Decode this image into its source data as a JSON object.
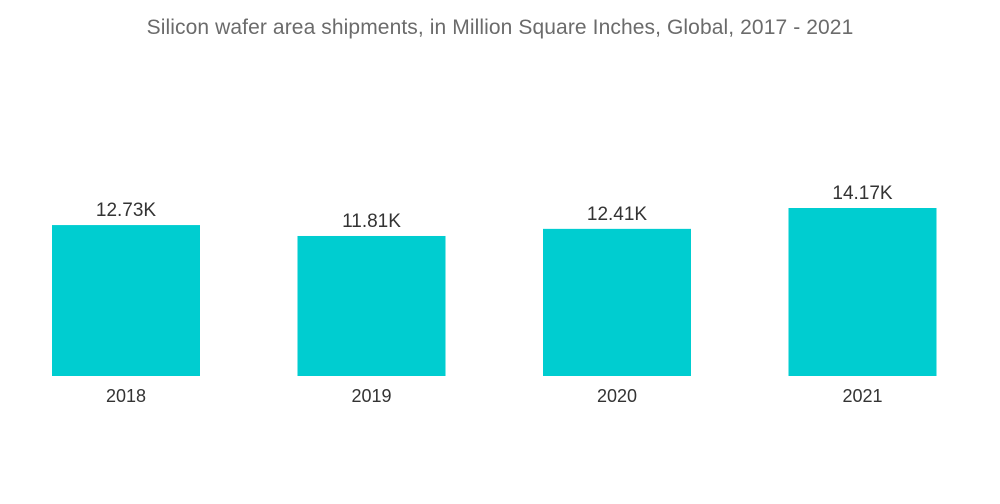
{
  "chart_data": {
    "type": "bar",
    "title": "Silicon wafer area shipments, in Million Square Inches, Global, 2017 - 2021",
    "categories": [
      "2018",
      "2019",
      "2020",
      "2021"
    ],
    "values": [
      12730,
      11810,
      12410,
      14170
    ],
    "data_labels": [
      "12.73K",
      "11.81K",
      "12.41K",
      "14.17K"
    ],
    "xlabel": "",
    "ylabel": "",
    "ylim": [
      0,
      14170
    ],
    "grid": false,
    "legend": "none",
    "colors": {
      "bar": "#00cdd0"
    }
  }
}
